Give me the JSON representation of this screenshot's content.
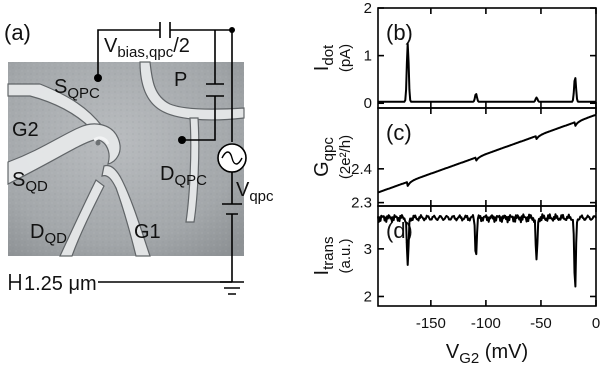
{
  "left": {
    "panel_label": "(a)",
    "labels": {
      "vbias": "V",
      "vbias_sub": "bias,qpc",
      "vbias_tail": "/2",
      "sqpc": "S",
      "sqpc_sub": "QPC",
      "p": "P",
      "g2": "G2",
      "dqpc": "D",
      "dqpc_sub": "QPC",
      "sqd": "S",
      "sqd_sub": "QD",
      "vqpc": "V",
      "vqpc_sub": "qpc",
      "dqd": "D",
      "dqd_sub": "QD",
      "g1": "G1"
    },
    "scale_bar": "1.25 μm"
  },
  "chart_data": [
    {
      "type": "line",
      "panel_label": "(b)",
      "ylabel": "I",
      "ylabel_sub": "dot",
      "yunit": "(pA)",
      "ylim": [
        -0.1,
        2.0
      ],
      "yticks": [
        "0",
        "1",
        "2"
      ],
      "ytick_values": [
        0,
        1,
        2
      ],
      "xlim": [
        -198,
        0
      ],
      "baseline": 0.03,
      "peaks": [
        {
          "x": -171,
          "y": 1.25
        },
        {
          "x": -109,
          "y": 0.2
        },
        {
          "x": -54,
          "y": 0.12
        },
        {
          "x": -19,
          "y": 0.55
        }
      ]
    },
    {
      "type": "line",
      "panel_label": "(c)",
      "ylabel": "G",
      "ylabel_sub": "qpc",
      "yunit": "(2e²/h)",
      "ylim": [
        2.29,
        2.58
      ],
      "yticks": [
        "2.3",
        "2.4"
      ],
      "ytick_values": [
        2.3,
        2.4
      ],
      "xlim": [
        -198,
        0
      ],
      "start": {
        "x": -198,
        "y": 2.33
      },
      "end": {
        "x": 0,
        "y": 2.56
      },
      "steps": [
        {
          "x": -171,
          "dy": -0.012
        },
        {
          "x": -109,
          "dy": -0.01
        },
        {
          "x": -54,
          "dy": -0.009
        },
        {
          "x": -19,
          "dy": -0.012
        }
      ]
    },
    {
      "type": "line",
      "panel_label": "(d)",
      "ylabel": "I",
      "ylabel_sub": "trans",
      "yunit": "(a.u.)",
      "ylim": [
        1.8,
        3.9
      ],
      "yticks": [
        "2",
        "3"
      ],
      "ytick_values": [
        2,
        3
      ],
      "xlim": [
        -198,
        0
      ],
      "baseline": 3.65,
      "dips": [
        {
          "x": -171,
          "y": 2.6
        },
        {
          "x": -109,
          "y": 2.85
        },
        {
          "x": -54,
          "y": 2.7
        },
        {
          "x": -19,
          "y": 2.1
        }
      ],
      "xlabel": "V",
      "xlabel_sub": "G2",
      "xlabel_unit": "(mV)",
      "xticks": [
        "-150",
        "-100",
        "-50",
        "0"
      ],
      "xtick_values": [
        -150,
        -100,
        -50,
        0
      ]
    }
  ]
}
